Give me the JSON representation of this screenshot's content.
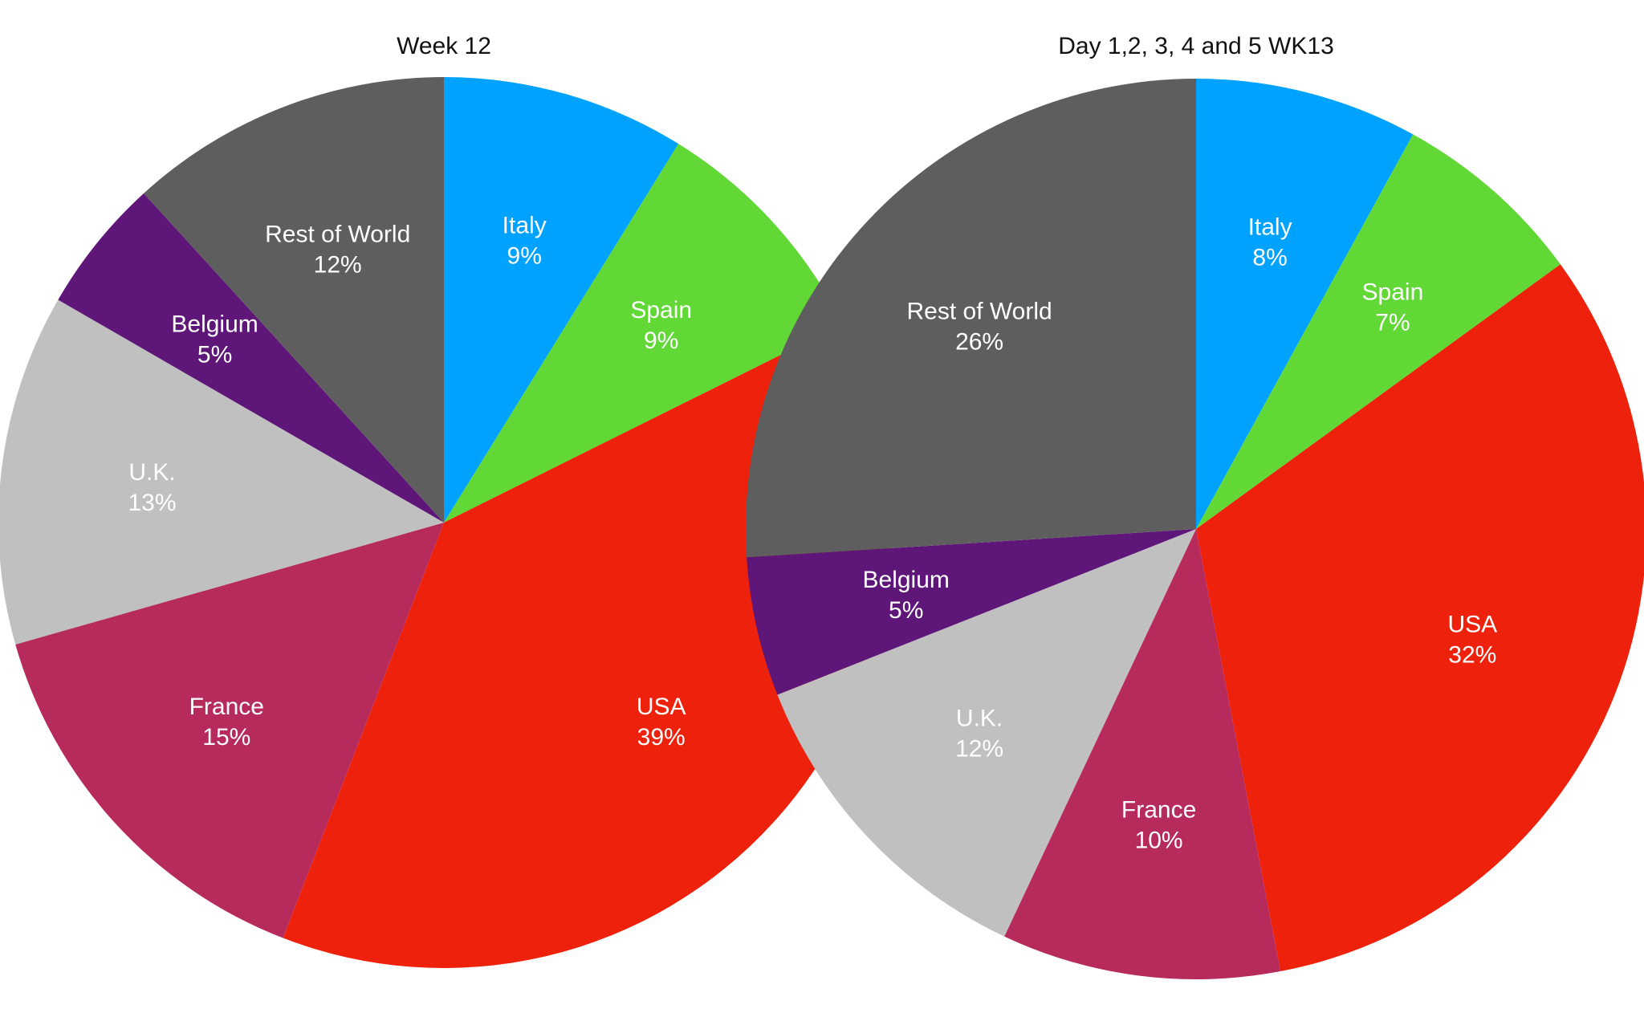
{
  "chart_data": [
    {
      "type": "pie",
      "title": "Week 12",
      "legend": "none",
      "slices": [
        {
          "label": "Italy",
          "value": 9,
          "value_label": "9%",
          "color": "#00A2FF"
        },
        {
          "label": "Spain",
          "value": 9,
          "value_label": "9%",
          "color": "#61D836"
        },
        {
          "label": "USA",
          "value": 39,
          "value_label": "39%",
          "color": "#EE220C"
        },
        {
          "label": "France",
          "value": 15,
          "value_label": "15%",
          "color": "#B72B5C"
        },
        {
          "label": "U.K.",
          "value": 13,
          "value_label": "13%",
          "color": "#C0C0C0"
        },
        {
          "label": "Belgium",
          "value": 5,
          "value_label": "5%",
          "color": "#5E1779"
        },
        {
          "label": "Rest of World",
          "value": 12,
          "value_label": "12%",
          "color": "#5E5E5E"
        }
      ]
    },
    {
      "type": "pie",
      "title": "Day 1,2, 3, 4 and 5 WK13",
      "legend": "none",
      "slices": [
        {
          "label": "Italy",
          "value": 8,
          "value_label": "8%",
          "color": "#00A2FF"
        },
        {
          "label": "Spain",
          "value": 7,
          "value_label": "7%",
          "color": "#61D836"
        },
        {
          "label": "USA",
          "value": 32,
          "value_label": "32%",
          "color": "#EE220C"
        },
        {
          "label": "France",
          "value": 10,
          "value_label": "10%",
          "color": "#B72B5C"
        },
        {
          "label": "U.K.",
          "value": 12,
          "value_label": "12%",
          "color": "#C0C0C0"
        },
        {
          "label": "Belgium",
          "value": 5,
          "value_label": "5%",
          "color": "#5E1779"
        },
        {
          "label": "Rest of World",
          "value": 26,
          "value_label": "26%",
          "color": "#5E5E5E"
        }
      ]
    }
  ]
}
